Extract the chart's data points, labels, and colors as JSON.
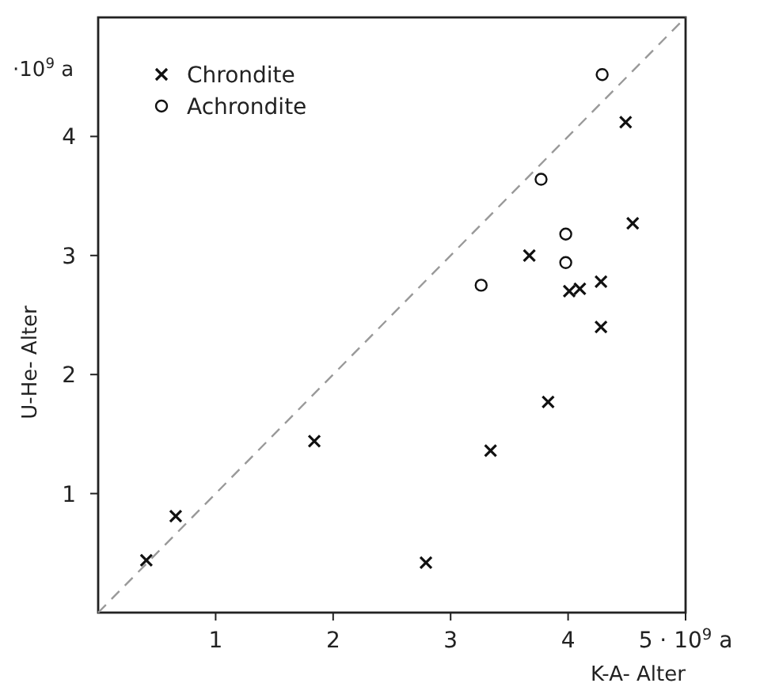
{
  "chart_data": {
    "type": "scatter",
    "xlabel": "K-A- Alter",
    "ylabel": "U-He- Alter",
    "annotations": [
      "·10$^{9}$ a"
    ],
    "xlim": [
      0,
      5
    ],
    "ylim": [
      0,
      5
    ],
    "xticks": [
      1,
      2,
      3,
      4,
      {
        "value": 5,
        "label": "5 · 10$^{9}$ a"
      }
    ],
    "yticks": [
      1,
      2,
      3,
      4
    ],
    "grid": false,
    "legend": "top left",
    "series": [
      {
        "name": "Chrondite",
        "color": "#111111",
        "marker": "cross",
        "x": [
          0.41,
          0.66,
          1.84,
          2.79,
          3.34,
          3.83,
          3.67,
          4.01,
          4.1,
          4.28,
          4.28,
          4.49,
          4.55
        ],
        "values": [
          0.44,
          0.81,
          1.44,
          0.42,
          1.36,
          1.77,
          3.0,
          2.7,
          2.72,
          2.78,
          2.4,
          4.12,
          3.27
        ]
      },
      {
        "name": "Achrondite",
        "color": "#111111",
        "marker": "circle",
        "x": [
          3.26,
          3.77,
          3.98,
          3.98,
          4.29
        ],
        "values": [
          2.75,
          3.64,
          3.18,
          2.94,
          4.52
        ]
      },
      {
        "type": "line",
        "color": "#999999",
        "line_style": "dashed",
        "marker": "none",
        "x": [
          0,
          5
        ],
        "values": [
          0,
          5
        ]
      }
    ]
  }
}
